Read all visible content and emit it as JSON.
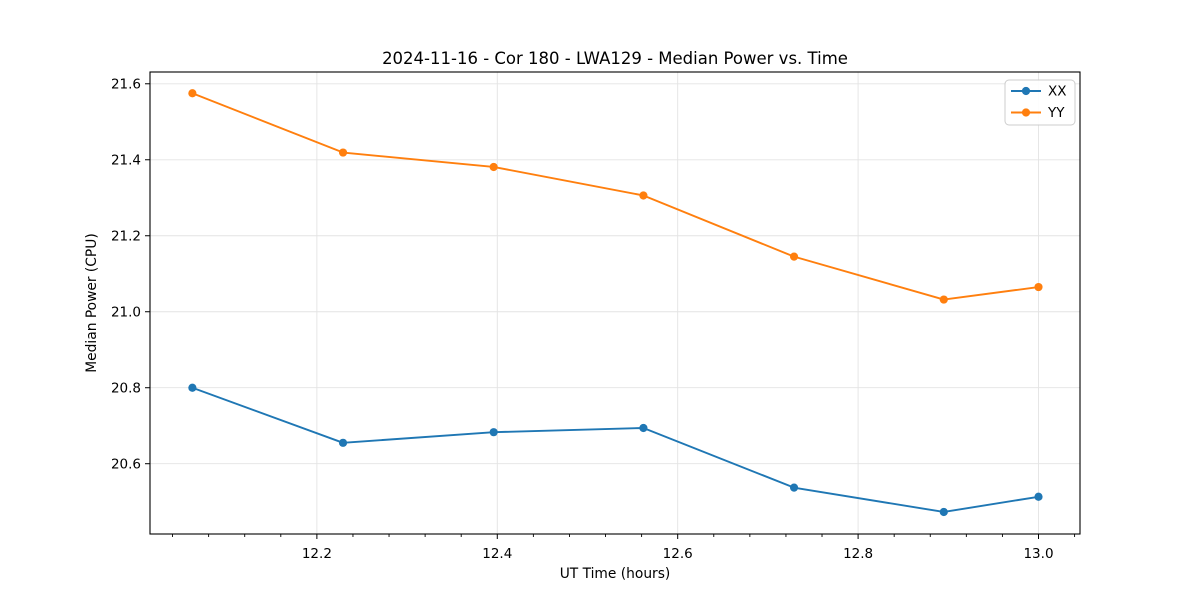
{
  "chart_data": {
    "type": "line",
    "title": "2024-11-16 - Cor 180 - LWA129 - Median Power vs. Time",
    "xlabel": "UT Time (hours)",
    "ylabel": "Median Power (CPU)",
    "xlim": [
      12.015,
      13.046
    ],
    "ylim": [
      20.415,
      21.631
    ],
    "x_major_ticks": [
      12.2,
      12.4,
      12.6,
      12.8,
      13.0
    ],
    "x_tick_labels": [
      "12.2",
      "12.4",
      "12.6",
      "12.8",
      "13.0"
    ],
    "x_minor_tick_start": 12.04,
    "x_minor_tick_step": 0.04,
    "y_major_ticks": [
      20.6,
      20.8,
      21.0,
      21.2,
      21.4,
      21.6
    ],
    "y_tick_labels": [
      "20.6",
      "20.8",
      "21.0",
      "21.2",
      "21.4",
      "21.6"
    ],
    "grid": true,
    "legend_position": "upper right",
    "x": [
      12.062,
      12.229,
      12.396,
      12.562,
      12.729,
      12.895,
      13.0
    ],
    "series": [
      {
        "name": "XX",
        "color": "#1f77b4",
        "values": [
          20.8,
          20.655,
          20.683,
          20.694,
          20.537,
          20.473,
          20.513
        ]
      },
      {
        "name": "YY",
        "color": "#ff7f0e",
        "values": [
          21.575,
          21.419,
          21.381,
          21.306,
          21.145,
          21.032,
          21.065
        ]
      }
    ]
  },
  "colors": {
    "background": "#ffffff",
    "grid": "#e3e3e3",
    "spine": "#000000",
    "tick": "#000000",
    "text": "#000000",
    "legend_border": "#cccccc",
    "legend_background": "#ffffff"
  }
}
